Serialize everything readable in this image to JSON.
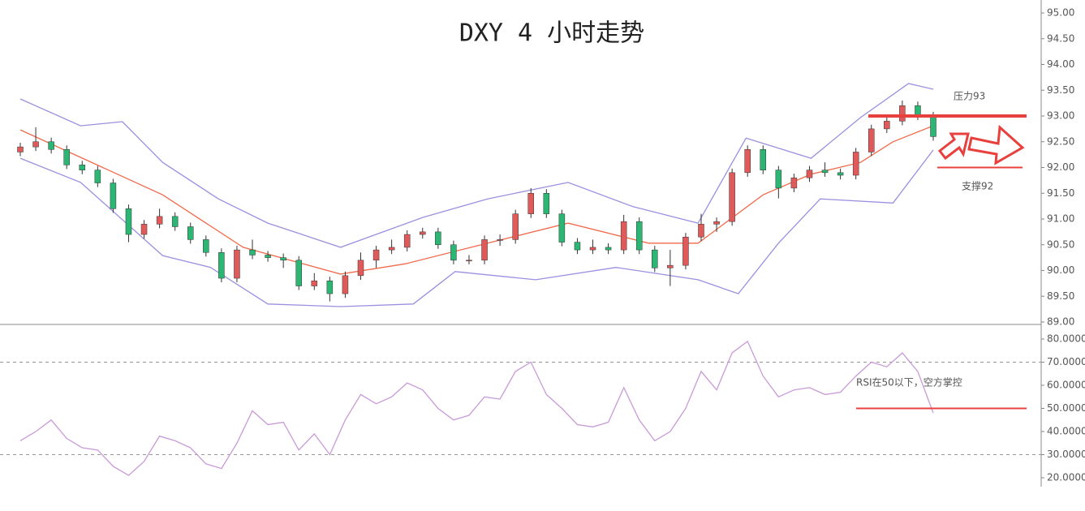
{
  "chart_data": {
    "type": "candlestick",
    "title": "DXY 4 小时走势",
    "up_color": "#e05a5a",
    "down_color": "#2bb673",
    "open": [
      92.3,
      92.4,
      92.5,
      92.35,
      92.05,
      91.95,
      91.7,
      91.2,
      90.7,
      90.9,
      91.05,
      90.85,
      90.6,
      90.35,
      89.85,
      90.4,
      90.3,
      90.25,
      90.2,
      89.7,
      89.8,
      89.55,
      89.9,
      90.2,
      90.4,
      90.45,
      90.7,
      90.75,
      90.5,
      90.2,
      90.2,
      90.6,
      90.6,
      91.1,
      91.5,
      91.1,
      90.55,
      90.4,
      90.45,
      90.4,
      90.95,
      90.4,
      90.05,
      90.1,
      90.65,
      90.9,
      90.95,
      91.9,
      92.35,
      91.95,
      91.6,
      91.8,
      91.95,
      91.9,
      91.85,
      92.3,
      92.75,
      92.9,
      93.2,
      93.0
    ],
    "high": [
      92.48,
      92.78,
      92.58,
      92.43,
      92.13,
      92.03,
      91.78,
      91.28,
      90.98,
      91.2,
      91.13,
      90.93,
      90.68,
      90.43,
      90.48,
      90.6,
      90.38,
      90.33,
      90.28,
      89.95,
      89.88,
      89.98,
      90.35,
      90.48,
      90.6,
      90.78,
      90.83,
      90.83,
      90.58,
      90.3,
      90.68,
      90.7,
      91.18,
      91.6,
      91.58,
      91.18,
      90.63,
      90.6,
      90.53,
      91.08,
      91.03,
      90.48,
      90.4,
      90.73,
      91.1,
      91.03,
      91.98,
      92.43,
      92.43,
      92.03,
      91.88,
      92.03,
      92.1,
      91.98,
      92.38,
      92.83,
      92.98,
      93.3,
      93.28,
      93.08
    ],
    "low": [
      92.22,
      92.32,
      92.27,
      91.97,
      91.87,
      91.62,
      91.12,
      90.55,
      90.62,
      90.82,
      90.77,
      90.52,
      90.27,
      89.77,
      89.77,
      90.22,
      90.17,
      90.05,
      89.62,
      89.62,
      89.4,
      89.47,
      89.82,
      90.05,
      90.32,
      90.37,
      90.62,
      90.42,
      90.12,
      90.12,
      90.12,
      90.48,
      90.52,
      91.02,
      91.02,
      90.47,
      90.32,
      90.32,
      90.32,
      90.32,
      90.32,
      89.97,
      89.7,
      90.02,
      90.57,
      90.75,
      90.87,
      91.82,
      91.87,
      91.4,
      91.52,
      91.72,
      91.82,
      91.77,
      91.77,
      92.22,
      92.67,
      92.82,
      92.92,
      92.52
    ],
    "close": [
      92.4,
      92.5,
      92.35,
      92.05,
      91.95,
      91.7,
      91.2,
      90.7,
      90.9,
      91.05,
      90.85,
      90.6,
      90.35,
      89.85,
      90.4,
      90.3,
      90.25,
      90.2,
      89.7,
      89.8,
      89.55,
      89.9,
      90.2,
      90.4,
      90.45,
      90.7,
      90.75,
      90.5,
      90.2,
      90.2,
      90.6,
      90.6,
      91.1,
      91.5,
      91.1,
      90.55,
      90.4,
      90.45,
      90.4,
      90.95,
      90.4,
      90.05,
      90.1,
      90.65,
      90.9,
      90.95,
      91.9,
      92.35,
      91.95,
      91.6,
      91.8,
      91.95,
      91.9,
      91.85,
      92.3,
      92.75,
      92.9,
      93.2,
      93.0,
      92.6
    ],
    "bands": [
      {
        "color": "#9b8fe0",
        "x": [
          0,
          3.9,
          6.6,
          9.2,
          12.8,
          16,
          20.7,
          26,
          30.2,
          35.4,
          39.6,
          43.8,
          46.9,
          51.1,
          54.3,
          57.4,
          59
        ],
        "values": [
          93.33,
          92.81,
          92.89,
          92.1,
          91.39,
          90.92,
          90.45,
          91.03,
          91.39,
          91.71,
          91.24,
          90.92,
          92.57,
          92.18,
          92.97,
          93.63,
          93.52
        ]
      },
      {
        "color": "#f06a4a",
        "x": [
          0,
          9.2,
          14.4,
          20.7,
          24.9,
          30.2,
          35.4,
          40.6,
          43.8,
          48,
          51.1,
          54.3,
          56.4,
          59
        ],
        "values": [
          92.73,
          91.47,
          90.45,
          89.93,
          90.13,
          90.53,
          90.92,
          90.53,
          90.53,
          91.47,
          91.87,
          92.1,
          92.5,
          92.81
        ]
      },
      {
        "color": "#9b8fe0",
        "x": [
          0,
          3.9,
          9.2,
          12.3,
          16,
          20.7,
          25.4,
          28.1,
          33.3,
          38.5,
          43.8,
          46.4,
          49,
          51.7,
          56.4,
          59
        ],
        "values": [
          92.18,
          91.71,
          90.29,
          90.06,
          89.35,
          89.3,
          89.35,
          89.98,
          89.82,
          90.06,
          89.82,
          89.55,
          90.53,
          91.39,
          91.31,
          92.34
        ]
      }
    ],
    "rsi": {
      "axis": "y2",
      "color": "#c89ad8",
      "values": [
        36,
        40,
        45,
        37,
        33,
        32,
        25,
        21,
        27,
        38,
        36,
        33,
        26,
        24,
        35,
        49,
        43,
        44,
        32,
        39,
        30,
        45,
        56,
        52,
        55,
        61,
        58,
        50,
        45,
        47,
        55,
        54,
        66,
        70,
        56,
        50,
        43,
        42,
        44,
        59,
        45,
        36,
        40,
        50,
        66,
        58,
        74,
        79,
        64,
        55,
        58,
        59,
        56,
        57,
        64,
        70,
        68,
        74,
        66,
        48
      ]
    },
    "ylim": [
      89,
      95
    ],
    "yticks": [
      {
        "value": 89,
        "label": "89.00"
      },
      {
        "value": 89.5,
        "label": "89.50"
      },
      {
        "value": 90,
        "label": "90.00"
      },
      {
        "value": 90.5,
        "label": "90.50"
      },
      {
        "value": 91,
        "label": "91.00"
      },
      {
        "value": 91.5,
        "label": "91.50"
      },
      {
        "value": 92,
        "label": "92.00"
      },
      {
        "value": 92.5,
        "label": "92.50"
      },
      {
        "value": 93,
        "label": "93.00"
      },
      {
        "value": 93.5,
        "label": "93.50"
      },
      {
        "value": 94,
        "label": "94.00"
      },
      {
        "value": 94.5,
        "label": "94.50"
      },
      {
        "value": 95,
        "label": "95.00"
      }
    ],
    "y2lim": [
      20,
      80
    ],
    "y2ticks": [
      {
        "value": 20,
        "label": "20.0000"
      },
      {
        "value": 30,
        "label": "30.0000"
      },
      {
        "value": 40,
        "label": "40.0000"
      },
      {
        "value": 50,
        "label": "50.0000"
      },
      {
        "value": 60,
        "label": "60.0000"
      },
      {
        "value": 70,
        "label": "70.0000"
      },
      {
        "value": 80,
        "label": "80.0000"
      }
    ],
    "y2_dashed_lines": [
      30,
      70
    ],
    "levels": [
      {
        "value": 93,
        "label": "压力93"
      },
      {
        "value": 92,
        "label": "支撑92"
      },
      {
        "value": 50,
        "axis": "y2",
        "label": "RSI在50以下，空方掌控"
      }
    ],
    "level_color": "#e8403c"
  }
}
